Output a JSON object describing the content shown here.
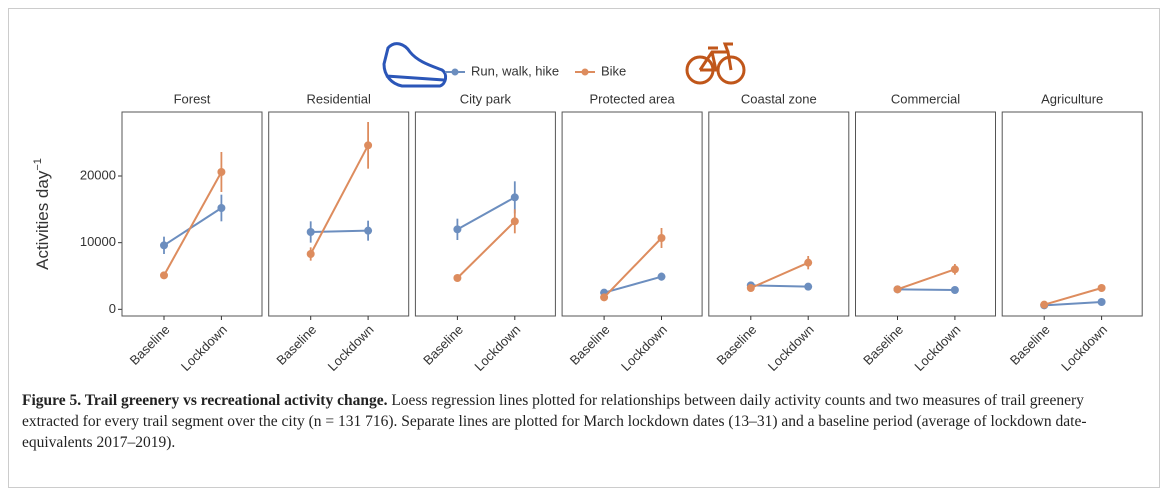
{
  "chart_data": {
    "type": "line",
    "ylabel": "Activities day",
    "ylabel_exponent": "−1",
    "categories": [
      "Baseline",
      "Lockdown"
    ],
    "ylim": [
      -1000,
      29600
    ],
    "yticks": [
      0,
      10000,
      20000
    ],
    "series": [
      {
        "name": "Run, walk, hike",
        "color": "#6c8ebf"
      },
      {
        "name": "Bike",
        "color": "#dd8c5e"
      }
    ],
    "facets": [
      {
        "title": "Forest",
        "series": [
          {
            "values": [
              9600,
              15200
            ],
            "errors": [
              1300,
              2000
            ]
          },
          {
            "values": [
              5100,
              20600
            ],
            "errors": [
              500,
              3000
            ]
          }
        ]
      },
      {
        "title": "Residential",
        "series": [
          {
            "values": [
              11600,
              11800
            ],
            "errors": [
              1600,
              1500
            ]
          },
          {
            "values": [
              8300,
              24600
            ],
            "errors": [
              1000,
              3500
            ]
          }
        ]
      },
      {
        "title": "City park",
        "series": [
          {
            "values": [
              12000,
              16800
            ],
            "errors": [
              1600,
              2400
            ]
          },
          {
            "values": [
              4700,
              13200
            ],
            "errors": [
              400,
              1800
            ]
          }
        ]
      },
      {
        "title": "Protected area",
        "series": [
          {
            "values": [
              2500,
              4900
            ],
            "errors": [
              300,
              600
            ]
          },
          {
            "values": [
              1800,
              10700
            ],
            "errors": [
              300,
              1500
            ]
          }
        ]
      },
      {
        "title": "Coastal zone",
        "series": [
          {
            "values": [
              3600,
              3400
            ],
            "errors": [
              300,
              300
            ]
          },
          {
            "values": [
              3200,
              7000
            ],
            "errors": [
              300,
              1000
            ]
          }
        ]
      },
      {
        "title": "Commercial",
        "series": [
          {
            "values": [
              3000,
              2900
            ],
            "errors": [
              200,
              200
            ]
          },
          {
            "values": [
              3000,
              6000
            ],
            "errors": [
              300,
              800
            ]
          }
        ]
      },
      {
        "title": "Agriculture",
        "series": [
          {
            "values": [
              600,
              1100
            ],
            "errors": [
              100,
              150
            ]
          },
          {
            "values": [
              700,
              3200
            ],
            "errors": [
              100,
              300
            ]
          }
        ]
      }
    ],
    "caption": {
      "label": "Figure 5. Trail greenery vs recreational activity change.",
      "text": "Loess regression lines plotted for relationships between daily activity counts and two measures of trail greenery extracted for every trail segment over the city (n = 131 716). Separate lines are plotted for March lockdown dates (13–31) and a baseline period (average of lockdown date-equivalents 2017–2019)."
    }
  }
}
